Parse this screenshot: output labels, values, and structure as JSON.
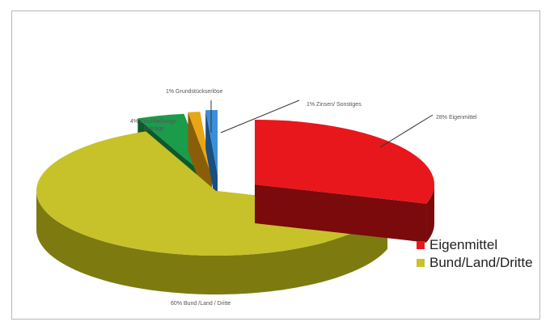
{
  "chart_data": {
    "type": "pie",
    "subtype": "3d-exploded",
    "slices": [
      {
        "label": "Eigenmittel",
        "value": 28,
        "color": "#e8171b",
        "side": "#7a0a0c",
        "text": "28% Eigenmittel"
      },
      {
        "label": "Bund/Land/Dritte",
        "value": 60,
        "color": "#c7c22a",
        "side": "#7d7a10",
        "text": "60% Bund /Land / Dritte"
      },
      {
        "label": "Erschließungsbeiträge",
        "value": 4,
        "color": "#1a9c4b",
        "side": "#0c5a2b",
        "text": "4% Erschließungs-\nbeiträge"
      },
      {
        "label": "Grundstückserlöse",
        "value": 1,
        "color": "#e8a616",
        "side": "#8a5e08",
        "text": "1% Grundstückserlöse"
      },
      {
        "label": "Zinsen/Sonstiges",
        "value": 1,
        "color": "#3b8fd8",
        "side": "#1a4f80",
        "text": "1% Zinsen/ Sonstiges"
      }
    ],
    "legend": {
      "placement": "right",
      "entries": [
        {
          "name": "Eigenmittel",
          "color": "#e8171b"
        },
        {
          "name": "Bund/Land/Dritte",
          "color": "#c7c22a"
        }
      ]
    }
  }
}
